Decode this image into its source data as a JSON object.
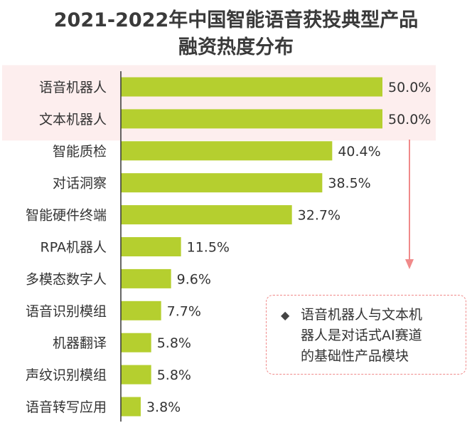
{
  "title_lines": [
    "2021-2022年中国智能语音获投典型产品",
    "融资热度分布"
  ],
  "chart_data": {
    "type": "bar",
    "orientation": "horizontal",
    "categories": [
      "语音机器人",
      "文本机器人",
      "智能质检",
      "对话洞察",
      "智能硬件终端",
      "RPA机器人",
      "多模态数字人",
      "语音识别模组",
      "机器翻译",
      "声纹识别模组",
      "语音转写应用"
    ],
    "values": [
      50.0,
      50.0,
      40.4,
      38.5,
      32.7,
      11.5,
      9.6,
      7.7,
      5.8,
      5.8,
      3.8
    ],
    "value_labels": [
      "50.0%",
      "50.0%",
      "40.4%",
      "38.5%",
      "32.7%",
      "11.5%",
      "9.6%",
      "7.7%",
      "5.8%",
      "5.8%",
      "3.8%"
    ],
    "highlighted_categories": [
      "语音机器人",
      "文本机器人"
    ],
    "xlim": [
      0,
      50
    ],
    "xlabel": "",
    "ylabel": "",
    "grid": false,
    "legend": "none",
    "bar_color": "#b5cf2f",
    "highlight_bg_color": "#fdeeee",
    "axis_color": "#333333"
  },
  "annotation": {
    "marker": "◆",
    "lines": [
      "语音机器人与文本机",
      "器人是对话式AI赛道",
      "的基础性产品模块"
    ],
    "border_color": "#f08a8a",
    "arrow_color": "#f08a8a"
  }
}
